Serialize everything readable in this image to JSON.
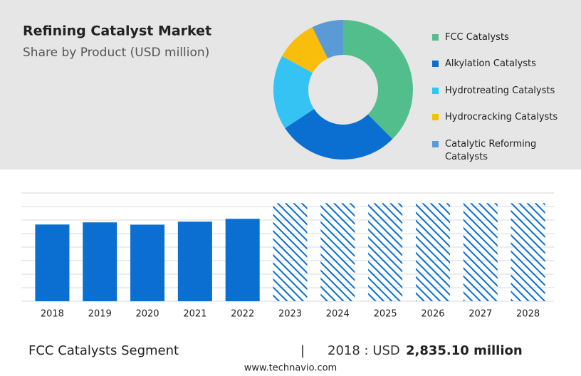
{
  "header": {
    "title": "Refining Catalyst Market",
    "subtitle": "Share by Product (USD million)"
  },
  "chart_data": [
    {
      "type": "donut",
      "categories": [
        "FCC Catalysts",
        "Alkylation Catalysts",
        "Hydrotreating Catalysts",
        "Hydrocracking Catalysts",
        "Catalytic Reforming Catalysts"
      ],
      "values": [
        37.5,
        28.2,
        17.3,
        9.7,
        7.3
      ],
      "colors": [
        "#52be8c",
        "#0a6fd0",
        "#35c3f4",
        "#f9bd0b",
        "#5b9bd5"
      ],
      "legend": "right"
    },
    {
      "type": "bar",
      "categories": [
        "2018",
        "2019",
        "2020",
        "2021",
        "2022",
        "2023",
        "2024",
        "2025",
        "2026",
        "2027",
        "2028"
      ],
      "values": [
        2835.1,
        2914,
        2830,
        2940,
        3045,
        3623,
        3623,
        3623,
        3623,
        3623,
        3623
      ],
      "hatched": [
        false,
        false,
        false,
        false,
        false,
        true,
        true,
        true,
        true,
        true,
        true
      ],
      "color": "#0a6fd0",
      "ylim": [
        0,
        4000
      ],
      "yticks": [
        0,
        500,
        1000,
        1500,
        2000,
        2500,
        3000,
        3500,
        4000
      ],
      "grid": true
    }
  ],
  "footer": {
    "segment": "FCC Catalysts Segment",
    "separator": "|",
    "year": "2018 : USD",
    "value": "2,835.10 million",
    "source": "www.technavio.com"
  }
}
